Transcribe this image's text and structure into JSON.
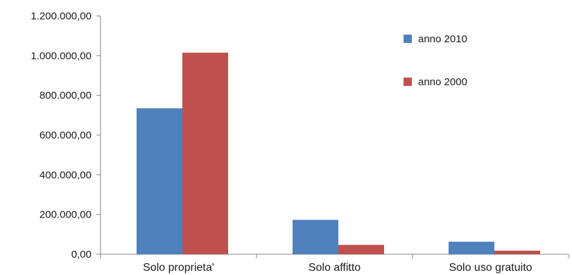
{
  "chart_data": {
    "type": "bar",
    "title": "",
    "xlabel": "",
    "ylabel": "",
    "categories": [
      "Solo proprieta'",
      "Solo affitto",
      "Solo uso gratuito"
    ],
    "series": [
      {
        "name": "anno 2010",
        "color": "#4f81bd",
        "values": [
          735000,
          173000,
          63000
        ]
      },
      {
        "name": "anno 2000",
        "color": "#c0504d",
        "values": [
          1015000,
          47000,
          18000
        ]
      }
    ],
    "ylim": [
      0,
      1200000
    ],
    "yticks": [
      0,
      200000,
      400000,
      600000,
      800000,
      1000000,
      1200000
    ],
    "ytick_labels": [
      "0,00",
      "200.000,00",
      "400.000,00",
      "600.000,00",
      "800.000,00",
      "1.000.000,00",
      "1.200.000,00"
    ],
    "grid": false,
    "legend_position": "top-right"
  }
}
